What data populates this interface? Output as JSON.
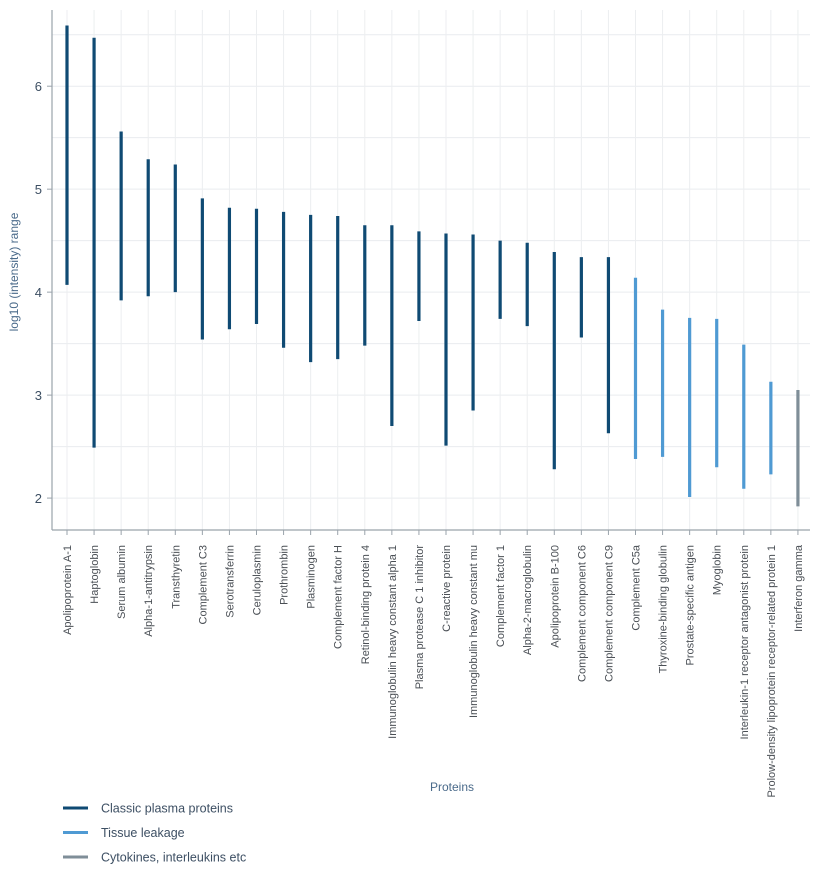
{
  "chart_data": {
    "type": "range-bar",
    "title": "",
    "xlabel": "Proteins",
    "ylabel": "log10 (intensity) range",
    "ylim": [
      1.69,
      6.74
    ],
    "yticks": [
      2,
      3,
      4,
      5,
      6
    ],
    "grid": true,
    "legend_placement": "bottom-left",
    "series": [
      {
        "name": "Classic plasma proteins",
        "color": "#0f4a73"
      },
      {
        "name": "Tissue leakage",
        "color": "#4f9ad3"
      },
      {
        "name": "Cytokines, interleukins etc",
        "color": "#7f8e98"
      }
    ],
    "categories": [
      {
        "name": "Apolipoprotein A-1",
        "low": 4.07,
        "high": 6.59,
        "series": 0
      },
      {
        "name": "Haptoglobin",
        "low": 2.49,
        "high": 6.47,
        "series": 0
      },
      {
        "name": "Serum albumin",
        "low": 3.92,
        "high": 5.56,
        "series": 0
      },
      {
        "name": "Alpha-1-antitrypsin",
        "low": 3.96,
        "high": 5.29,
        "series": 0
      },
      {
        "name": "Transthyretin",
        "low": 4.0,
        "high": 5.24,
        "series": 0
      },
      {
        "name": "Complement C3",
        "low": 3.54,
        "high": 4.91,
        "series": 0
      },
      {
        "name": "Serotransferrin",
        "low": 3.64,
        "high": 4.82,
        "series": 0
      },
      {
        "name": "Ceruloplasmin",
        "low": 3.69,
        "high": 4.81,
        "series": 0
      },
      {
        "name": "Prothrombin",
        "low": 3.46,
        "high": 4.78,
        "series": 0
      },
      {
        "name": "Plasminogen",
        "low": 3.32,
        "high": 4.75,
        "series": 0
      },
      {
        "name": "Complement factor H",
        "low": 3.35,
        "high": 4.74,
        "series": 0
      },
      {
        "name": "Retinol-binding protein 4",
        "low": 3.48,
        "high": 4.65,
        "series": 0
      },
      {
        "name": "Immunoglobulin heavy constant alpha 1",
        "low": 2.7,
        "high": 4.65,
        "series": 0
      },
      {
        "name": "Plasma protease C 1 inhibitor",
        "low": 3.72,
        "high": 4.59,
        "series": 0
      },
      {
        "name": "C-reactive protein",
        "low": 2.51,
        "high": 4.57,
        "series": 0
      },
      {
        "name": "Immunoglobulin heavy constant mu",
        "low": 2.85,
        "high": 4.56,
        "series": 0
      },
      {
        "name": "Complement factor 1",
        "low": 3.74,
        "high": 4.5,
        "series": 0
      },
      {
        "name": "Alpha-2-macroglobulin",
        "low": 3.67,
        "high": 4.48,
        "series": 0
      },
      {
        "name": "Apolipoprotein B-100",
        "low": 2.28,
        "high": 4.39,
        "series": 0
      },
      {
        "name": "Complement component C6",
        "low": 3.56,
        "high": 4.34,
        "series": 0
      },
      {
        "name": "Complement component C9",
        "low": 2.63,
        "high": 4.34,
        "series": 0
      },
      {
        "name": "Complement C5a",
        "low": 2.38,
        "high": 4.14,
        "series": 1
      },
      {
        "name": "Thyroxine-binding globulin",
        "low": 2.4,
        "high": 3.83,
        "series": 1
      },
      {
        "name": "Prostate-specific antigen",
        "low": 2.01,
        "high": 3.75,
        "series": 1
      },
      {
        "name": "Myoglobin",
        "low": 2.3,
        "high": 3.74,
        "series": 1
      },
      {
        "name": "Interleukin-1 receptor antagonist protein",
        "low": 2.09,
        "high": 3.49,
        "series": 1
      },
      {
        "name": "Prolow-density lipoprotein receptor-related protein 1",
        "low": 2.23,
        "high": 3.13,
        "series": 1
      },
      {
        "name": "Interferon gamma",
        "low": 1.92,
        "high": 3.05,
        "series": 2
      }
    ]
  }
}
